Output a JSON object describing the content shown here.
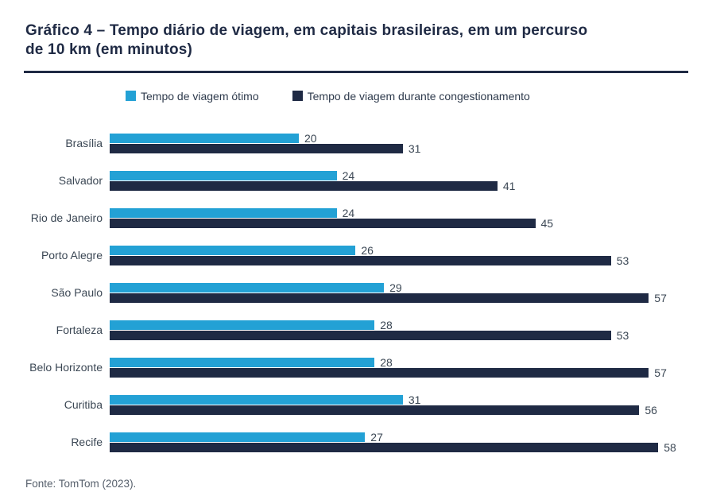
{
  "title": {
    "line1": "Gráfico 4 – Tempo diário de viagem, em capitais brasileiras, em um percurso",
    "line2": "de 10 km (em minutos)"
  },
  "legend": {
    "items": [
      {
        "label": "Tempo de viagem ótimo",
        "color": "#23a1d5"
      },
      {
        "label": "Tempo de viagem durante congestionamento",
        "color": "#1f2a44"
      }
    ]
  },
  "source": "Fonte: TomTom (2023).",
  "colors": {
    "accent_blue": "#23a1d5",
    "navy": "#1f2a44",
    "label_text": "#3b4754"
  },
  "chart_data": {
    "type": "bar",
    "orientation": "horizontal",
    "title": "Tempo diário de viagem, em capitais brasileiras, em um percurso de 10 km (em minutos)",
    "categories": [
      "Brasília",
      "Salvador",
      "Rio de Janeiro",
      "Porto Alegre",
      "São Paulo",
      "Fortaleza",
      "Belo Horizonte",
      "Curitiba",
      "Recife"
    ],
    "series": [
      {
        "name": "Tempo de viagem ótimo",
        "color": "#23a1d5",
        "values": [
          20,
          24,
          24,
          26,
          29,
          28,
          28,
          31,
          27
        ]
      },
      {
        "name": "Tempo de viagem durante congestionamento",
        "color": "#1f2a44",
        "values": [
          31,
          41,
          45,
          53,
          57,
          53,
          57,
          56,
          58
        ]
      }
    ],
    "xlabel": "",
    "ylabel": "",
    "xlim": [
      0,
      60
    ],
    "grid": false,
    "value_labels": true,
    "legend_position": "top"
  }
}
